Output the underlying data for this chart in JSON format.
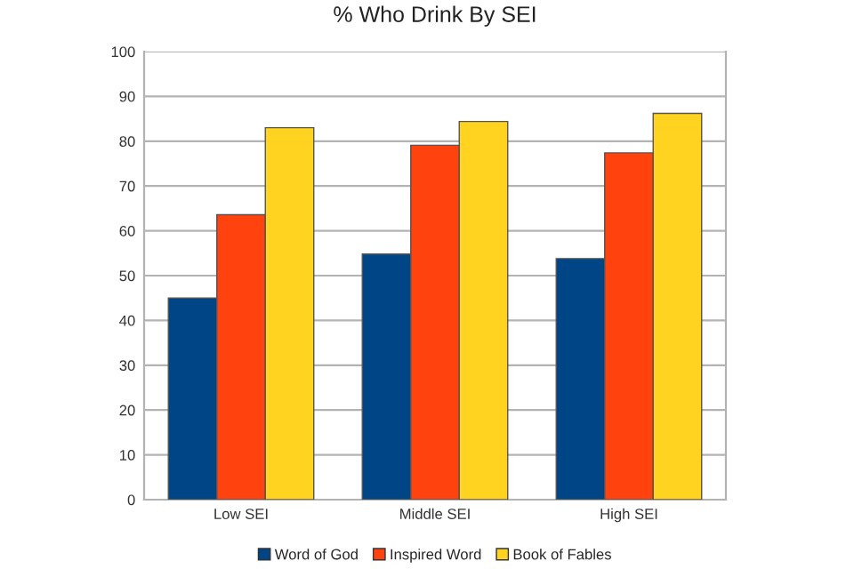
{
  "chart_data": {
    "type": "bar",
    "title": "% Who Drink By SEI",
    "categories": [
      "Low SEI",
      "Middle SEI",
      "High SEI"
    ],
    "series": [
      {
        "name": "Word of God",
        "color": "#004586",
        "values": [
          45,
          54.8,
          53.8
        ]
      },
      {
        "name": "Inspired Word",
        "color": "#ff420e",
        "values": [
          63.6,
          79.1,
          77.4
        ]
      },
      {
        "name": "Book of Fables",
        "color": "#ffd320",
        "values": [
          83.0,
          84.4,
          86.2
        ]
      }
    ],
    "ylim": [
      0,
      100
    ],
    "yticks": [
      0,
      10,
      20,
      30,
      40,
      50,
      60,
      70,
      80,
      90,
      100
    ],
    "grid": "y",
    "legend": "bottom"
  }
}
